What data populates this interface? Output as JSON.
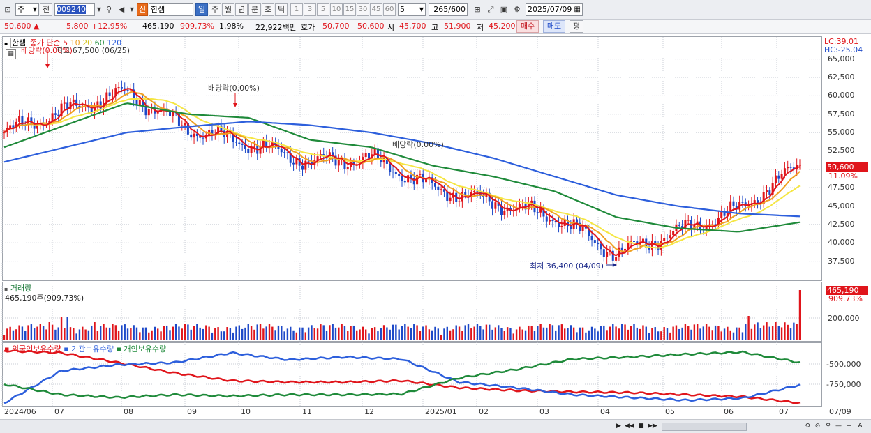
{
  "toolbar": {
    "market_select": "주",
    "prev_label": "전",
    "stock_code": "009240",
    "new_badge": "신",
    "stock_name": "한샘",
    "period_buttons": [
      "일",
      "주",
      "월",
      "년",
      "분",
      "초",
      "틱"
    ],
    "active_period": "일",
    "minute_buttons": [
      "1",
      "3",
      "5",
      "10",
      "15",
      "30",
      "45",
      "60"
    ],
    "interval_value": "5",
    "count_value": "265",
    "count_total": "/600",
    "date_value": "2025/07/09"
  },
  "quote": {
    "price": "50,600",
    "change": "5,800",
    "change_pct": "+12.95%",
    "volume": "465,190",
    "volume_ratio": "909.73%",
    "turnover_pct": "1.98%",
    "trade_value": "22,922백만",
    "ask_label": "호가",
    "ask": "50,700",
    "bid": "50,600",
    "open_label": "시",
    "open": "45,700",
    "high_label": "고",
    "high": "51,900",
    "low_label": "저",
    "low": "45,200",
    "buy_button": "매수",
    "sell_button": "매도",
    "eval_button": "평"
  },
  "price_panel": {
    "stock_name": "한샘",
    "legend_price": "종가 단순",
    "ma_periods": [
      "5",
      "10",
      "20",
      "60",
      "120"
    ],
    "ma_colors": [
      "#e0151b",
      "#f0a020",
      "#f5e642",
      "#1f8a3a",
      "#2d5fdc"
    ],
    "lc": "LC:39.01",
    "hc": "HC:-25.04",
    "current_price": "50,600",
    "current_pct": "11.09%",
    "y_ticks": [
      "65,000",
      "62,500",
      "60,000",
      "57,500",
      "55,000",
      "52,500",
      "50,000",
      "47,500",
      "45,000",
      "42,500",
      "40,000",
      "37,500"
    ],
    "y_range": [
      35000,
      68000
    ],
    "high_note": "최고 67,500 (06/25)",
    "low_note": "최저 36,400 (04/09)",
    "dividend_note_1": "배당락(0.00%)",
    "dividend_note_2": "배당락(0.00%)",
    "dividend_note_3": "배당락(0.00%)"
  },
  "volume_panel": {
    "title": "거래량",
    "value_label": "465,190주(909.73%)",
    "current": "465,190",
    "current_pct": "909.73%",
    "y_tick": "200,000"
  },
  "holdings_panel": {
    "legend": [
      "외국인보유수량",
      "기관보유수량",
      "개인보유수량"
    ],
    "legend_colors": [
      "#e0151b",
      "#2d5fdc",
      "#1f8a3a"
    ],
    "y_ticks": [
      "-500,000",
      "-750,000"
    ]
  },
  "x_axis": {
    "labels": [
      "2024/06",
      "07",
      "08",
      "09",
      "10",
      "11",
      "12",
      "2025/01",
      "02",
      "03",
      "04",
      "05",
      "06",
      "07"
    ],
    "end_label": "07/09"
  },
  "chart_data": {
    "type": "line",
    "title": "",
    "xlabel": "",
    "ylabel": "",
    "x": [
      "2024/06",
      "2024/07",
      "2024/08",
      "2024/09",
      "2024/10",
      "2024/11",
      "2024/12",
      "2025/01",
      "2025/02",
      "2025/03",
      "2025/04",
      "2025/05",
      "2025/06",
      "2025/07/09"
    ],
    "series": [
      {
        "name": "종가",
        "values": [
          55000,
          58000,
          60500,
          55500,
          53500,
          51000,
          51500,
          47500,
          45500,
          43500,
          38500,
          41500,
          44500,
          50600
        ]
      },
      {
        "name": "120",
        "values": [
          51000,
          53000,
          55000,
          55800,
          56500,
          56000,
          55000,
          53500,
          51500,
          49000,
          46500,
          45000,
          44000,
          43600
        ]
      },
      {
        "name": "60",
        "values": [
          53000,
          56000,
          59000,
          57500,
          57000,
          54000,
          53000,
          50500,
          49000,
          47000,
          43500,
          42000,
          41500,
          42800
        ]
      }
    ],
    "ylim": [
      35000,
      68000
    ]
  }
}
